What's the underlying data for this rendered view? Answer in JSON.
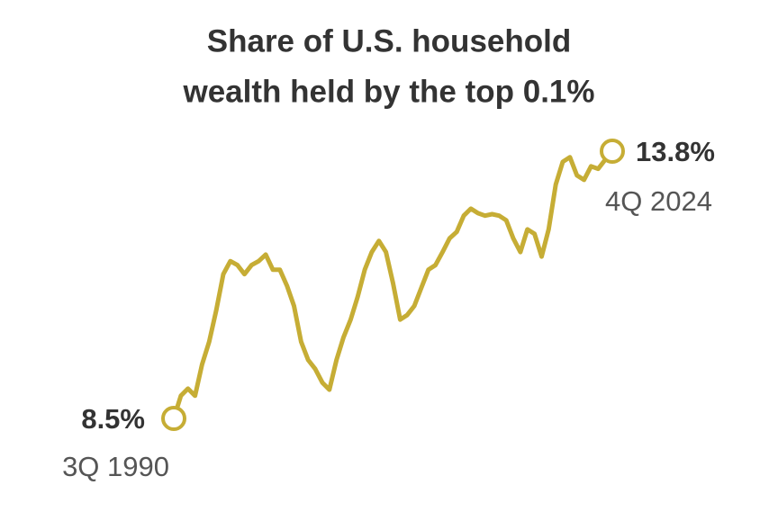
{
  "chart_data": {
    "type": "line",
    "title": [
      "Share of U.S. household",
      "wealth held by the top 0.1%"
    ],
    "color": "#c6ad35",
    "categories": [
      "3Q 1990",
      null,
      null,
      null,
      null,
      null,
      null,
      null,
      null,
      null,
      null,
      null,
      null,
      null,
      null,
      null,
      null,
      null,
      null,
      null,
      null,
      null,
      null,
      null,
      null,
      null,
      null,
      null,
      null,
      null,
      null,
      null,
      null,
      null,
      null,
      null,
      null,
      null,
      null,
      null,
      null,
      null,
      null,
      null,
      null,
      null,
      null,
      null,
      null,
      null,
      null,
      null,
      null,
      null,
      null,
      null,
      null,
      null,
      null,
      null,
      null,
      null,
      "4Q 2024"
    ],
    "values": [
      8.5,
      8.95,
      9.09,
      8.95,
      9.57,
      10.02,
      10.64,
      11.36,
      11.62,
      11.54,
      11.36,
      11.54,
      11.62,
      11.75,
      11.45,
      11.45,
      11.13,
      10.73,
      10.02,
      9.66,
      9.48,
      9.21,
      9.07,
      9.66,
      10.11,
      10.46,
      10.91,
      11.45,
      11.8,
      12.02,
      11.8,
      11.18,
      10.46,
      10.55,
      10.73,
      11.09,
      11.45,
      11.54,
      11.8,
      12.07,
      12.2,
      12.52,
      12.66,
      12.57,
      12.52,
      12.55,
      12.52,
      12.43,
      12.07,
      11.8,
      12.25,
      12.16,
      11.71,
      12.25,
      13.14,
      13.59,
      13.68,
      13.32,
      13.23,
      13.5,
      13.45,
      13.63,
      13.8
    ],
    "value_labels": [
      "8.5%",
      null,
      null,
      null,
      null,
      null,
      null,
      null,
      null,
      null,
      null,
      null,
      null,
      null,
      null,
      null,
      null,
      null,
      null,
      null,
      null,
      null,
      null,
      null,
      null,
      null,
      null,
      null,
      null,
      null,
      null,
      null,
      null,
      null,
      null,
      null,
      null,
      null,
      null,
      null,
      null,
      null,
      null,
      null,
      null,
      null,
      null,
      null,
      null,
      null,
      null,
      null,
      null,
      null,
      null,
      null,
      null,
      null,
      null,
      null,
      null,
      null,
      "13.8%"
    ]
  }
}
